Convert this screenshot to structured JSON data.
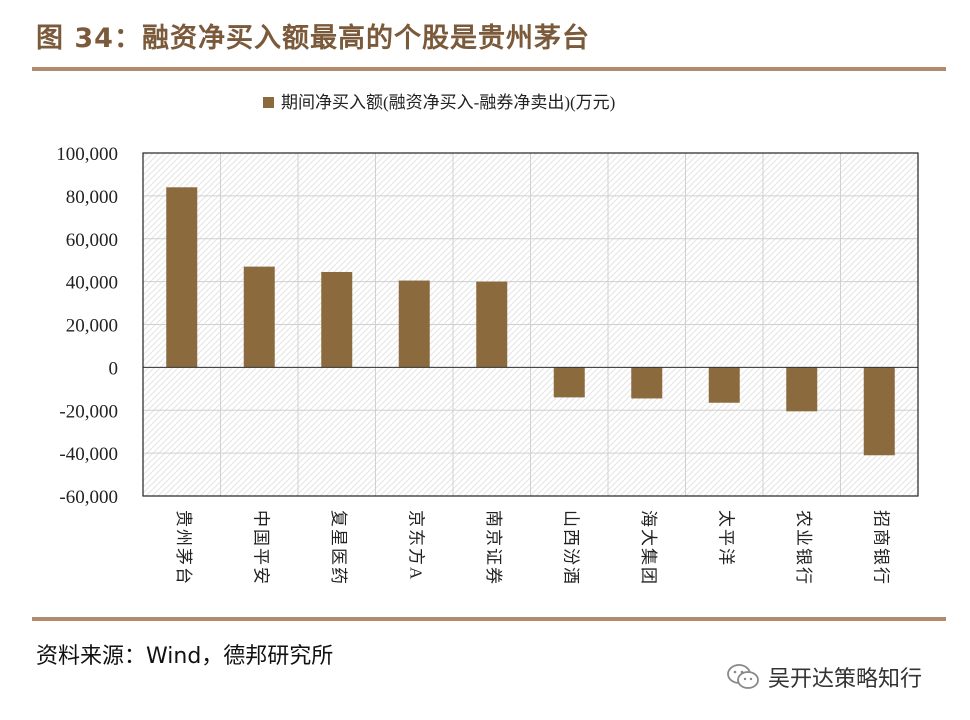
{
  "title": "图 34：融资净买入额最高的个股是贵州茅台",
  "source": "资料来源：Wind，德邦研究所",
  "watermark": {
    "icon": "wechat-icon",
    "text": "吴开达策略知行"
  },
  "colors": {
    "accent": "#7a5a3a",
    "rule": "#b08c6c",
    "bar": "#8b6a3e"
  },
  "chart_data": {
    "type": "bar",
    "legend": "期间净买入额(融资净买入-融券净卖出)(万元)",
    "legend_position": "top-center",
    "categories": [
      "贵州茅台",
      "中国平安",
      "复星医药",
      "京东方A",
      "南京证券",
      "山西汾酒",
      "海大集团",
      "太平洋",
      "农业银行",
      "招商银行"
    ],
    "series": [
      {
        "name": "期间净买入额(融资净买入-融券净卖出)(万元)",
        "values": [
          84000,
          47000,
          44500,
          40500,
          40000,
          -14000,
          -14500,
          -16500,
          -20500,
          -41000
        ]
      }
    ],
    "ylim": [
      -60000,
      100000
    ],
    "yticks": [
      100000,
      80000,
      60000,
      40000,
      20000,
      0,
      -20000,
      -40000,
      -60000
    ],
    "ytick_labels": [
      "100,000",
      "80,000",
      "60,000",
      "40,000",
      "20,000",
      "0",
      "-20,000",
      "-40,000",
      "-60,000"
    ],
    "grid": true
  }
}
